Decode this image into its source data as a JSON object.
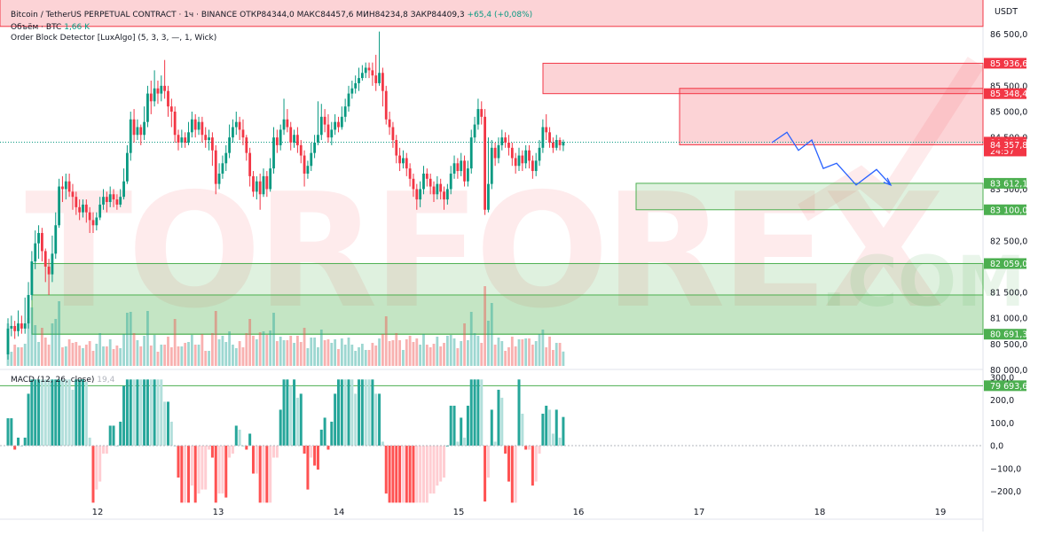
{
  "header": {
    "symbol": "Bitcoin / TetherUS PERPETUAL CONTRACT · 1ч · BINANCE",
    "open": "ОТКР84344,0",
    "high": "МАКС84457,6",
    "low": "МИН84234,8",
    "close": "ЗАКР84409,3",
    "change": "+65,4 (+0,08%)",
    "volume_label": "Объём · BTC",
    "volume_value": "1,66 K",
    "indicator": "Order Block Detector [LuxAlgo] (5, 3, 3, —, 1, Wick)",
    "macd_label": "MACD (12, 26, close)",
    "macd_value": "19,4"
  },
  "currency": "USDT",
  "watermark": {
    "text": "TORFOREX",
    "suffix": ".COM"
  },
  "chart_data": {
    "type": "candlestick",
    "timeframe": "1h",
    "x_dates": [
      "12",
      "13",
      "14",
      "15",
      "16",
      "17",
      "18",
      "19"
    ],
    "price_axis": {
      "ticks": [
        "86 500,0",
        "85 500,0",
        "85 000,0",
        "84 500,0",
        "83 500,0",
        "82 500,0",
        "81 500,0",
        "81 000,0",
        "80 500,0",
        "80 000,0"
      ],
      "range": [
        79500,
        86700
      ]
    },
    "macd_axis": {
      "ticks": [
        "300,0",
        "200,0",
        "100,0",
        "0,0",
        "−100,0",
        "−200,0"
      ],
      "range": [
        -260,
        310
      ]
    },
    "price_labels": [
      {
        "label": "85 936,6",
        "value": 85936.6,
        "color": "#f23645"
      },
      {
        "label": "85 348,4",
        "value": 85348.4,
        "color": "#f23645"
      },
      {
        "label": "84 409,3",
        "value": 84409.3,
        "color": "#f23645",
        "countdown": "24:57"
      },
      {
        "label": "84 357,8",
        "value": 84357.8,
        "color": "#f23645"
      },
      {
        "label": "83 612,1",
        "value": 83612.1,
        "color": "#4caf50"
      },
      {
        "label": "83 100,0",
        "value": 83100.0,
        "color": "#4caf50"
      },
      {
        "label": "82 059,0",
        "value": 82059.0,
        "color": "#4caf50"
      },
      {
        "label": "80 691,3",
        "value": 80691.3,
        "color": "#4caf50"
      },
      {
        "label": "79 693,6",
        "value": 79693.6,
        "color": "#4caf50"
      }
    ],
    "zones": [
      {
        "kind": "bearish",
        "top": 88800,
        "bottom": 86650,
        "from": 0,
        "to": 1108
      },
      {
        "kind": "bearish",
        "top": 85936.6,
        "bottom": 85348.4,
        "from": 612,
        "to": 1108
      },
      {
        "kind": "bearish",
        "top": 85450,
        "bottom": 84357.8,
        "from": 766,
        "to": 1108
      },
      {
        "kind": "bullish",
        "top": 83612.1,
        "bottom": 83100.0,
        "from": 717,
        "to": 1108
      },
      {
        "kind": "bullish",
        "top": 82059.0,
        "bottom": 80691.3,
        "from": 36,
        "to": 1108
      },
      {
        "kind": "bullish",
        "top": 81450,
        "bottom": 80691.3,
        "from": 36,
        "to": 1108
      }
    ],
    "projection": [
      [
        870,
        84400
      ],
      [
        887,
        84600
      ],
      [
        900,
        84250
      ],
      [
        915,
        84450
      ],
      [
        928,
        83900
      ],
      [
        943,
        84000
      ],
      [
        965,
        83580
      ],
      [
        988,
        83880
      ],
      [
        1004,
        83580
      ]
    ],
    "candles": [
      {
        "o": 80300,
        "c": 80800,
        "h": 81000,
        "l": 80200
      },
      {
        "o": 80800,
        "c": 80850,
        "h": 81050,
        "l": 80650
      },
      {
        "o": 80850,
        "c": 80750,
        "h": 80950,
        "l": 80600
      },
      {
        "o": 80750,
        "c": 80900,
        "h": 81150,
        "l": 80650
      },
      {
        "o": 80900,
        "c": 80800,
        "h": 81050,
        "l": 80700
      },
      {
        "o": 80800,
        "c": 80900,
        "h": 81400,
        "l": 80700
      },
      {
        "o": 80900,
        "c": 81450,
        "h": 81700,
        "l": 80800
      },
      {
        "o": 81450,
        "c": 82100,
        "h": 82300,
        "l": 81350
      },
      {
        "o": 82100,
        "c": 82450,
        "h": 82700,
        "l": 81950
      },
      {
        "o": 82450,
        "c": 82650,
        "h": 82800,
        "l": 82150
      },
      {
        "o": 82650,
        "c": 82300,
        "h": 82750,
        "l": 82100
      },
      {
        "o": 82300,
        "c": 82000,
        "h": 82350,
        "l": 81700
      },
      {
        "o": 82000,
        "c": 81850,
        "h": 82150,
        "l": 81450
      },
      {
        "o": 81850,
        "c": 82250,
        "h": 82600,
        "l": 81700
      },
      {
        "o": 82250,
        "c": 82800,
        "h": 83050,
        "l": 82150
      },
      {
        "o": 82800,
        "c": 83550,
        "h": 83700,
        "l": 82750
      },
      {
        "o": 83550,
        "c": 83500,
        "h": 83750,
        "l": 83250
      },
      {
        "o": 83500,
        "c": 83650,
        "h": 83800,
        "l": 83300
      },
      {
        "o": 83650,
        "c": 83450,
        "h": 83800,
        "l": 83350
      },
      {
        "o": 83450,
        "c": 83350,
        "h": 83600,
        "l": 83100
      },
      {
        "o": 83350,
        "c": 83150,
        "h": 83450,
        "l": 83000
      },
      {
        "o": 83150,
        "c": 83050,
        "h": 83300,
        "l": 82900
      },
      {
        "o": 83050,
        "c": 83200,
        "h": 83300,
        "l": 82950
      },
      {
        "o": 83200,
        "c": 83050,
        "h": 83300,
        "l": 82850
      },
      {
        "o": 83050,
        "c": 82900,
        "h": 83150,
        "l": 82650
      },
      {
        "o": 82900,
        "c": 82800,
        "h": 83050,
        "l": 82650
      },
      {
        "o": 82800,
        "c": 82950,
        "h": 83050,
        "l": 82700
      },
      {
        "o": 82950,
        "c": 83200,
        "h": 83350,
        "l": 82900
      },
      {
        "o": 83200,
        "c": 83350,
        "h": 83500,
        "l": 83100
      },
      {
        "o": 83350,
        "c": 83250,
        "h": 83450,
        "l": 83050
      },
      {
        "o": 83250,
        "c": 83400,
        "h": 83550,
        "l": 83150
      },
      {
        "o": 83400,
        "c": 83300,
        "h": 83500,
        "l": 83150
      },
      {
        "o": 83300,
        "c": 83200,
        "h": 83400,
        "l": 83100
      },
      {
        "o": 83200,
        "c": 83350,
        "h": 83500,
        "l": 83150
      },
      {
        "o": 83350,
        "c": 83650,
        "h": 83900,
        "l": 83300
      },
      {
        "o": 83650,
        "c": 84200,
        "h": 84350,
        "l": 83600
      },
      {
        "o": 84200,
        "c": 84850,
        "h": 85000,
        "l": 84050
      },
      {
        "o": 84850,
        "c": 84550,
        "h": 85050,
        "l": 84400
      },
      {
        "o": 84550,
        "c": 84700,
        "h": 84850,
        "l": 84450
      },
      {
        "o": 84700,
        "c": 84550,
        "h": 84750,
        "l": 84350
      },
      {
        "o": 84550,
        "c": 84800,
        "h": 85100,
        "l": 84450
      },
      {
        "o": 84800,
        "c": 85350,
        "h": 85500,
        "l": 84700
      },
      {
        "o": 85350,
        "c": 85200,
        "h": 85600,
        "l": 84950
      },
      {
        "o": 85200,
        "c": 85450,
        "h": 85800,
        "l": 85100
      },
      {
        "o": 85450,
        "c": 85350,
        "h": 85600,
        "l": 85150
      },
      {
        "o": 85350,
        "c": 85500,
        "h": 85700,
        "l": 85200
      },
      {
        "o": 85500,
        "c": 85400,
        "h": 86000,
        "l": 85250
      },
      {
        "o": 85400,
        "c": 85100,
        "h": 85500,
        "l": 84900
      },
      {
        "o": 85100,
        "c": 85000,
        "h": 85250,
        "l": 84700
      },
      {
        "o": 85000,
        "c": 84550,
        "h": 85100,
        "l": 84400
      },
      {
        "o": 84550,
        "c": 84400,
        "h": 84650,
        "l": 84250
      },
      {
        "o": 84400,
        "c": 84500,
        "h": 84650,
        "l": 84300
      },
      {
        "o": 84500,
        "c": 84400,
        "h": 84600,
        "l": 84300
      },
      {
        "o": 84400,
        "c": 84600,
        "h": 84800,
        "l": 84350
      },
      {
        "o": 84600,
        "c": 84850,
        "h": 85000,
        "l": 84500
      },
      {
        "o": 84850,
        "c": 84650,
        "h": 84950,
        "l": 84500
      },
      {
        "o": 84650,
        "c": 84800,
        "h": 84900,
        "l": 84550
      },
      {
        "o": 84800,
        "c": 84550,
        "h": 84900,
        "l": 84400
      },
      {
        "o": 84550,
        "c": 84450,
        "h": 84700,
        "l": 84300
      },
      {
        "o": 84450,
        "c": 84500,
        "h": 84650,
        "l": 84250
      },
      {
        "o": 84500,
        "c": 84250,
        "h": 84600,
        "l": 83950
      },
      {
        "o": 84250,
        "c": 83600,
        "h": 84350,
        "l": 83400
      },
      {
        "o": 83600,
        "c": 83800,
        "h": 84000,
        "l": 83500
      },
      {
        "o": 83800,
        "c": 84000,
        "h": 84150,
        "l": 83700
      },
      {
        "o": 84000,
        "c": 84200,
        "h": 84350,
        "l": 83850
      },
      {
        "o": 84200,
        "c": 84500,
        "h": 84750,
        "l": 84100
      },
      {
        "o": 84500,
        "c": 84700,
        "h": 84850,
        "l": 84400
      },
      {
        "o": 84700,
        "c": 84800,
        "h": 85000,
        "l": 84550
      },
      {
        "o": 84800,
        "c": 84650,
        "h": 84900,
        "l": 84450
      },
      {
        "o": 84650,
        "c": 84500,
        "h": 84850,
        "l": 84350
      },
      {
        "o": 84500,
        "c": 84200,
        "h": 84550,
        "l": 84050
      },
      {
        "o": 84200,
        "c": 83750,
        "h": 84300,
        "l": 83550
      },
      {
        "o": 83750,
        "c": 83450,
        "h": 83850,
        "l": 83350
      },
      {
        "o": 83450,
        "c": 83650,
        "h": 83750,
        "l": 83300
      },
      {
        "o": 83650,
        "c": 83400,
        "h": 83800,
        "l": 83100
      },
      {
        "o": 83400,
        "c": 83750,
        "h": 83900,
        "l": 83350
      },
      {
        "o": 83750,
        "c": 83500,
        "h": 83850,
        "l": 83350
      },
      {
        "o": 83500,
        "c": 83900,
        "h": 84100,
        "l": 83450
      },
      {
        "o": 83900,
        "c": 84500,
        "h": 84700,
        "l": 83800
      },
      {
        "o": 84500,
        "c": 84350,
        "h": 84650,
        "l": 84200
      },
      {
        "o": 84350,
        "c": 84650,
        "h": 84750,
        "l": 84250
      },
      {
        "o": 84650,
        "c": 84850,
        "h": 85250,
        "l": 84550
      },
      {
        "o": 84850,
        "c": 84700,
        "h": 85050,
        "l": 84600
      },
      {
        "o": 84700,
        "c": 84400,
        "h": 84800,
        "l": 84250
      },
      {
        "o": 84400,
        "c": 84550,
        "h": 84650,
        "l": 84300
      },
      {
        "o": 84550,
        "c": 84350,
        "h": 84700,
        "l": 84200
      },
      {
        "o": 84350,
        "c": 84150,
        "h": 84450,
        "l": 84000
      },
      {
        "o": 84150,
        "c": 83800,
        "h": 84250,
        "l": 83550
      },
      {
        "o": 83800,
        "c": 83950,
        "h": 84050,
        "l": 83700
      },
      {
        "o": 83950,
        "c": 84200,
        "h": 84400,
        "l": 83850
      },
      {
        "o": 84200,
        "c": 84400,
        "h": 84550,
        "l": 84100
      },
      {
        "o": 84400,
        "c": 84550,
        "h": 85200,
        "l": 84350
      },
      {
        "o": 84550,
        "c": 84900,
        "h": 85150,
        "l": 84450
      },
      {
        "o": 84900,
        "c": 84750,
        "h": 85050,
        "l": 84600
      },
      {
        "o": 84750,
        "c": 84500,
        "h": 84950,
        "l": 84400
      },
      {
        "o": 84500,
        "c": 84650,
        "h": 84800,
        "l": 84350
      },
      {
        "o": 84650,
        "c": 84800,
        "h": 84950,
        "l": 84550
      },
      {
        "o": 84800,
        "c": 84700,
        "h": 84900,
        "l": 84600
      },
      {
        "o": 84700,
        "c": 84900,
        "h": 85100,
        "l": 84650
      },
      {
        "o": 84900,
        "c": 85100,
        "h": 85250,
        "l": 84800
      },
      {
        "o": 85100,
        "c": 85350,
        "h": 85500,
        "l": 85000
      },
      {
        "o": 85350,
        "c": 85450,
        "h": 85600,
        "l": 85250
      },
      {
        "o": 85450,
        "c": 85550,
        "h": 85700,
        "l": 85350
      },
      {
        "o": 85550,
        "c": 85650,
        "h": 85850,
        "l": 85400
      },
      {
        "o": 85650,
        "c": 85750,
        "h": 85900,
        "l": 85600
      },
      {
        "o": 85750,
        "c": 85850,
        "h": 85950,
        "l": 85650
      },
      {
        "o": 85850,
        "c": 85800,
        "h": 85950,
        "l": 85650
      },
      {
        "o": 85800,
        "c": 85700,
        "h": 85950,
        "l": 85500
      },
      {
        "o": 85700,
        "c": 85550,
        "h": 86100,
        "l": 85400
      },
      {
        "o": 85550,
        "c": 85750,
        "h": 86550,
        "l": 85500
      },
      {
        "o": 85750,
        "c": 85400,
        "h": 85850,
        "l": 85100
      },
      {
        "o": 85400,
        "c": 84850,
        "h": 85500,
        "l": 84750
      },
      {
        "o": 84850,
        "c": 84700,
        "h": 85000,
        "l": 84550
      },
      {
        "o": 84700,
        "c": 84450,
        "h": 84800,
        "l": 84300
      },
      {
        "o": 84450,
        "c": 84150,
        "h": 84550,
        "l": 84000
      },
      {
        "o": 84150,
        "c": 84000,
        "h": 84300,
        "l": 83850
      },
      {
        "o": 84000,
        "c": 84100,
        "h": 84250,
        "l": 83900
      },
      {
        "o": 84100,
        "c": 83900,
        "h": 84200,
        "l": 83750
      },
      {
        "o": 83900,
        "c": 83700,
        "h": 84000,
        "l": 83550
      },
      {
        "o": 83700,
        "c": 83500,
        "h": 83800,
        "l": 83350
      },
      {
        "o": 83500,
        "c": 83300,
        "h": 83600,
        "l": 83100
      },
      {
        "o": 83300,
        "c": 83500,
        "h": 83650,
        "l": 83150
      },
      {
        "o": 83500,
        "c": 83800,
        "h": 83950,
        "l": 83400
      },
      {
        "o": 83800,
        "c": 83700,
        "h": 83900,
        "l": 83550
      },
      {
        "o": 83700,
        "c": 83550,
        "h": 83800,
        "l": 83400
      },
      {
        "o": 83550,
        "c": 83400,
        "h": 83650,
        "l": 83250
      },
      {
        "o": 83400,
        "c": 83600,
        "h": 83750,
        "l": 83300
      },
      {
        "o": 83600,
        "c": 83450,
        "h": 83700,
        "l": 83300
      },
      {
        "o": 83450,
        "c": 83300,
        "h": 83550,
        "l": 83100
      },
      {
        "o": 83300,
        "c": 83500,
        "h": 83600,
        "l": 83200
      },
      {
        "o": 83500,
        "c": 83800,
        "h": 83950,
        "l": 83400
      },
      {
        "o": 83800,
        "c": 84000,
        "h": 84150,
        "l": 83700
      },
      {
        "o": 84000,
        "c": 83850,
        "h": 84100,
        "l": 83700
      },
      {
        "o": 83850,
        "c": 84050,
        "h": 84200,
        "l": 83750
      },
      {
        "o": 84050,
        "c": 83650,
        "h": 84150,
        "l": 83550
      },
      {
        "o": 83650,
        "c": 83900,
        "h": 84050,
        "l": 83550
      },
      {
        "o": 83900,
        "c": 84500,
        "h": 84650,
        "l": 83800
      },
      {
        "o": 84500,
        "c": 84750,
        "h": 84900,
        "l": 84400
      },
      {
        "o": 84750,
        "c": 85050,
        "h": 85250,
        "l": 84650
      },
      {
        "o": 85050,
        "c": 84900,
        "h": 85200,
        "l": 84750
      },
      {
        "o": 84900,
        "c": 83100,
        "h": 85050,
        "l": 83000
      },
      {
        "o": 83100,
        "c": 83600,
        "h": 84500,
        "l": 83050
      },
      {
        "o": 83600,
        "c": 84300,
        "h": 84450,
        "l": 83500
      },
      {
        "o": 84300,
        "c": 84100,
        "h": 84400,
        "l": 83950
      },
      {
        "o": 84100,
        "c": 84350,
        "h": 84500,
        "l": 84000
      },
      {
        "o": 84350,
        "c": 84500,
        "h": 84650,
        "l": 84250
      },
      {
        "o": 84500,
        "c": 84400,
        "h": 84600,
        "l": 84300
      },
      {
        "o": 84400,
        "c": 84300,
        "h": 84550,
        "l": 84150
      },
      {
        "o": 84300,
        "c": 84100,
        "h": 84400,
        "l": 83950
      },
      {
        "o": 84100,
        "c": 83950,
        "h": 84200,
        "l": 83800
      },
      {
        "o": 83950,
        "c": 84150,
        "h": 84300,
        "l": 83850
      },
      {
        "o": 84150,
        "c": 84000,
        "h": 84250,
        "l": 83850
      },
      {
        "o": 84000,
        "c": 84250,
        "h": 84350,
        "l": 83900
      },
      {
        "o": 84250,
        "c": 84050,
        "h": 84350,
        "l": 83900
      },
      {
        "o": 84050,
        "c": 83850,
        "h": 84150,
        "l": 83700
      },
      {
        "o": 83850,
        "c": 84050,
        "h": 84200,
        "l": 83750
      },
      {
        "o": 84050,
        "c": 84300,
        "h": 84450,
        "l": 83950
      },
      {
        "o": 84300,
        "c": 84700,
        "h": 84850,
        "l": 84200
      },
      {
        "o": 84700,
        "c": 84600,
        "h": 84950,
        "l": 84450
      },
      {
        "o": 84600,
        "c": 84400,
        "h": 84700,
        "l": 84300
      },
      {
        "o": 84400,
        "c": 84300,
        "h": 84500,
        "l": 84200
      },
      {
        "o": 84300,
        "c": 84450,
        "h": 84550,
        "l": 84250
      },
      {
        "o": 84450,
        "c": 84350,
        "h": 84500,
        "l": 84250
      },
      {
        "o": 84344,
        "c": 84409,
        "h": 84458,
        "l": 84235
      }
    ]
  }
}
